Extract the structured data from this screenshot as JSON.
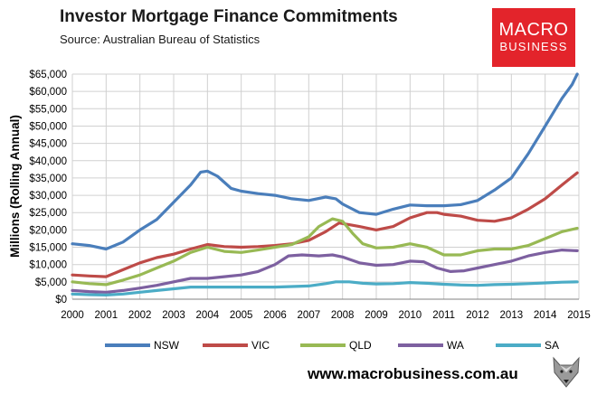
{
  "header": {
    "title": "Investor Mortgage Finance Commitments",
    "subtitle": "Source: Australian Bureau of Statistics"
  },
  "logo": {
    "line1": "MACRO",
    "line2": "BUSINESS"
  },
  "footer": {
    "website": "www.macrobusiness.com.au"
  },
  "icons": {
    "wolf": "wolf-head-icon"
  },
  "chart_data": {
    "type": "line",
    "title": "Investor Mortgage Finance Commitments",
    "subtitle": "Source: Australian Bureau of Statistics",
    "xlabel": "",
    "ylabel": "Millions (Rolling Annual)",
    "xlim": [
      2000,
      2015
    ],
    "ylim": [
      0,
      65000
    ],
    "xticks": [
      2000,
      2001,
      2002,
      2003,
      2004,
      2005,
      2006,
      2007,
      2008,
      2009,
      2010,
      2011,
      2012,
      2013,
      2014,
      2015
    ],
    "xtick_labels": [
      "2000",
      "2001",
      "2002",
      "2003",
      "2004",
      "2005",
      "2006",
      "2007",
      "2008",
      "2009",
      "2010",
      "2011",
      "2012",
      "2013",
      "2014",
      "2015"
    ],
    "yticks": [
      0,
      5000,
      10000,
      15000,
      20000,
      25000,
      30000,
      35000,
      40000,
      45000,
      50000,
      55000,
      60000,
      65000
    ],
    "ytick_labels": [
      "$0",
      "$5,000",
      "$10,000",
      "$15,000",
      "$20,000",
      "$25,000",
      "$30,000",
      "$35,000",
      "$40,000",
      "$45,000",
      "$50,000",
      "$55,000",
      "$60,000",
      "$65,000"
    ],
    "grid": true,
    "legend": "bottom",
    "series": [
      {
        "name": "NSW",
        "color": "#4a7ebb",
        "points": [
          [
            2000.0,
            16000
          ],
          [
            2000.5,
            15500
          ],
          [
            2001.0,
            14500
          ],
          [
            2001.5,
            16500
          ],
          [
            2002.0,
            20000
          ],
          [
            2002.5,
            23000
          ],
          [
            2003.0,
            28000
          ],
          [
            2003.5,
            33000
          ],
          [
            2003.8,
            36700
          ],
          [
            2004.0,
            37000
          ],
          [
            2004.3,
            35500
          ],
          [
            2004.7,
            32000
          ],
          [
            2005.0,
            31200
          ],
          [
            2005.5,
            30500
          ],
          [
            2006.0,
            30000
          ],
          [
            2006.5,
            29000
          ],
          [
            2007.0,
            28500
          ],
          [
            2007.5,
            29500
          ],
          [
            2007.8,
            29000
          ],
          [
            2008.0,
            27500
          ],
          [
            2008.5,
            25000
          ],
          [
            2009.0,
            24500
          ],
          [
            2009.5,
            26000
          ],
          [
            2010.0,
            27200
          ],
          [
            2010.5,
            27000
          ],
          [
            2011.0,
            27000
          ],
          [
            2011.5,
            27300
          ],
          [
            2012.0,
            28500
          ],
          [
            2012.5,
            31500
          ],
          [
            2013.0,
            35000
          ],
          [
            2013.5,
            42000
          ],
          [
            2014.0,
            50000
          ],
          [
            2014.5,
            58000
          ],
          [
            2014.8,
            62000
          ],
          [
            2014.95,
            65000
          ]
        ]
      },
      {
        "name": "VIC",
        "color": "#be4b48",
        "points": [
          [
            2000.0,
            7000
          ],
          [
            2000.5,
            6700
          ],
          [
            2001.0,
            6500
          ],
          [
            2001.5,
            8500
          ],
          [
            2002.0,
            10500
          ],
          [
            2002.5,
            12000
          ],
          [
            2003.0,
            13000
          ],
          [
            2003.5,
            14500
          ],
          [
            2004.0,
            15800
          ],
          [
            2004.5,
            15200
          ],
          [
            2005.0,
            15000
          ],
          [
            2005.5,
            15200
          ],
          [
            2006.0,
            15500
          ],
          [
            2006.5,
            16000
          ],
          [
            2007.0,
            17000
          ],
          [
            2007.5,
            19500
          ],
          [
            2007.9,
            22000
          ],
          [
            2008.2,
            21500
          ],
          [
            2008.5,
            21000
          ],
          [
            2009.0,
            20000
          ],
          [
            2009.5,
            21000
          ],
          [
            2010.0,
            23500
          ],
          [
            2010.5,
            25000
          ],
          [
            2010.8,
            25000
          ],
          [
            2011.0,
            24500
          ],
          [
            2011.5,
            24000
          ],
          [
            2012.0,
            22800
          ],
          [
            2012.5,
            22500
          ],
          [
            2013.0,
            23500
          ],
          [
            2013.5,
            26000
          ],
          [
            2014.0,
            29000
          ],
          [
            2014.5,
            33000
          ],
          [
            2014.95,
            36500
          ]
        ]
      },
      {
        "name": "QLD",
        "color": "#98b954",
        "points": [
          [
            2000.0,
            5000
          ],
          [
            2000.5,
            4500
          ],
          [
            2001.0,
            4200
          ],
          [
            2001.5,
            5500
          ],
          [
            2002.0,
            7000
          ],
          [
            2002.5,
            9000
          ],
          [
            2003.0,
            11000
          ],
          [
            2003.5,
            13500
          ],
          [
            2004.0,
            15000
          ],
          [
            2004.5,
            13800
          ],
          [
            2005.0,
            13500
          ],
          [
            2005.5,
            14200
          ],
          [
            2006.0,
            15000
          ],
          [
            2006.5,
            15800
          ],
          [
            2007.0,
            18000
          ],
          [
            2007.3,
            21000
          ],
          [
            2007.7,
            23200
          ],
          [
            2008.0,
            22500
          ],
          [
            2008.3,
            19000
          ],
          [
            2008.6,
            16000
          ],
          [
            2009.0,
            14800
          ],
          [
            2009.5,
            15000
          ],
          [
            2010.0,
            16000
          ],
          [
            2010.5,
            15000
          ],
          [
            2011.0,
            12800
          ],
          [
            2011.5,
            12800
          ],
          [
            2012.0,
            14000
          ],
          [
            2012.5,
            14500
          ],
          [
            2013.0,
            14500
          ],
          [
            2013.5,
            15500
          ],
          [
            2014.0,
            17500
          ],
          [
            2014.5,
            19500
          ],
          [
            2014.95,
            20500
          ]
        ]
      },
      {
        "name": "WA",
        "color": "#7d60a0",
        "points": [
          [
            2000.0,
            2500
          ],
          [
            2000.5,
            2200
          ],
          [
            2001.0,
            2000
          ],
          [
            2001.5,
            2500
          ],
          [
            2002.0,
            3200
          ],
          [
            2002.5,
            4000
          ],
          [
            2003.0,
            5000
          ],
          [
            2003.5,
            6000
          ],
          [
            2004.0,
            6000
          ],
          [
            2004.5,
            6500
          ],
          [
            2005.0,
            7000
          ],
          [
            2005.5,
            8000
          ],
          [
            2006.0,
            10000
          ],
          [
            2006.4,
            12500
          ],
          [
            2006.8,
            12800
          ],
          [
            2007.3,
            12500
          ],
          [
            2007.7,
            12800
          ],
          [
            2008.0,
            12200
          ],
          [
            2008.5,
            10500
          ],
          [
            2009.0,
            9800
          ],
          [
            2009.5,
            10000
          ],
          [
            2010.0,
            11000
          ],
          [
            2010.4,
            10800
          ],
          [
            2010.8,
            9000
          ],
          [
            2011.2,
            8000
          ],
          [
            2011.6,
            8200
          ],
          [
            2012.0,
            9000
          ],
          [
            2012.5,
            10000
          ],
          [
            2013.0,
            11000
          ],
          [
            2013.5,
            12500
          ],
          [
            2014.0,
            13500
          ],
          [
            2014.5,
            14200
          ],
          [
            2014.95,
            14000
          ]
        ]
      },
      {
        "name": "SA",
        "color": "#4bacc6",
        "points": [
          [
            2000.0,
            1500
          ],
          [
            2000.5,
            1300
          ],
          [
            2001.0,
            1200
          ],
          [
            2001.5,
            1500
          ],
          [
            2002.0,
            2000
          ],
          [
            2002.5,
            2500
          ],
          [
            2003.0,
            3000
          ],
          [
            2003.5,
            3500
          ],
          [
            2004.0,
            3500
          ],
          [
            2005.0,
            3500
          ],
          [
            2006.0,
            3500
          ],
          [
            2007.0,
            3800
          ],
          [
            2007.5,
            4500
          ],
          [
            2007.8,
            5000
          ],
          [
            2008.2,
            5000
          ],
          [
            2008.6,
            4600
          ],
          [
            2009.0,
            4400
          ],
          [
            2009.5,
            4500
          ],
          [
            2010.0,
            4800
          ],
          [
            2010.5,
            4600
          ],
          [
            2011.0,
            4300
          ],
          [
            2011.5,
            4100
          ],
          [
            2012.0,
            4000
          ],
          [
            2012.5,
            4200
          ],
          [
            2013.0,
            4300
          ],
          [
            2013.5,
            4500
          ],
          [
            2014.0,
            4700
          ],
          [
            2014.5,
            4900
          ],
          [
            2014.95,
            5000
          ]
        ]
      }
    ]
  }
}
